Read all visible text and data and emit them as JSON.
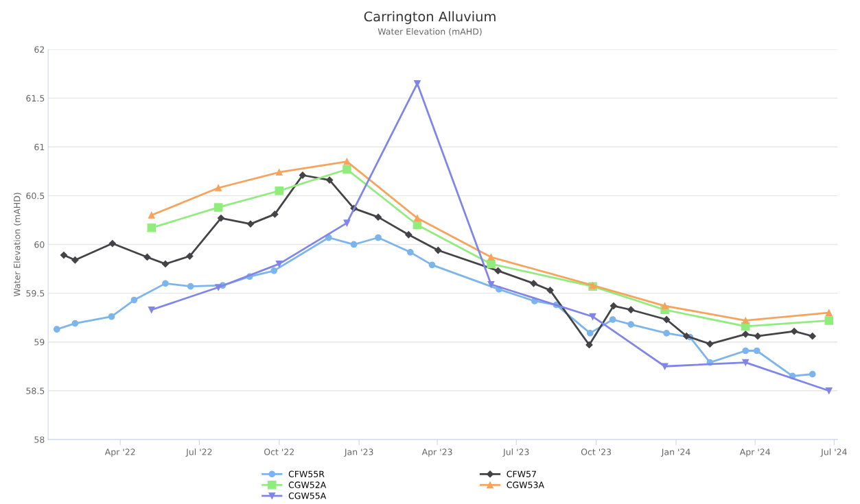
{
  "chart_data": {
    "type": "line",
    "title": "Carrington Alluvium",
    "subtitle": "Water Elevation (mAHD)",
    "ylabel": "Water Elevation (mAHD)",
    "xlim": [
      "2022-01-08",
      "2024-07-05"
    ],
    "xticks": [
      {
        "value": "2022-04-01",
        "label": "Apr '22"
      },
      {
        "value": "2022-07-01",
        "label": "Jul '22"
      },
      {
        "value": "2022-10-01",
        "label": "Oct '22"
      },
      {
        "value": "2023-01-01",
        "label": "Jan '23"
      },
      {
        "value": "2023-04-01",
        "label": "Apr '23"
      },
      {
        "value": "2023-07-01",
        "label": "Jul '23"
      },
      {
        "value": "2023-10-01",
        "label": "Oct '23"
      },
      {
        "value": "2024-01-01",
        "label": "Jan '24"
      },
      {
        "value": "2024-04-01",
        "label": "Apr '24"
      },
      {
        "value": "2024-07-01",
        "label": "Jul '24"
      }
    ],
    "ylim": [
      58,
      62
    ],
    "yticks": [
      58,
      58.5,
      59,
      59.5,
      60,
      60.5,
      61,
      61.5,
      62
    ],
    "grid": "y",
    "legend": "bottom",
    "line_style": "solid",
    "series": [
      {
        "name": "CFW55R",
        "color": "#7cb5ec",
        "marker": "circle",
        "x": [
          "2022-01-18",
          "2022-02-08",
          "2022-03-22",
          "2022-04-17",
          "2022-05-23",
          "2022-06-21",
          "2022-07-28",
          "2022-08-28",
          "2022-09-25",
          "2022-11-27",
          "2022-12-26",
          "2023-01-23",
          "2023-03-01",
          "2023-03-26",
          "2023-06-11",
          "2023-07-22",
          "2023-08-16",
          "2023-09-24",
          "2023-10-20",
          "2023-11-10",
          "2023-12-21",
          "2024-01-17",
          "2024-02-09",
          "2024-03-21",
          "2024-04-03",
          "2024-05-14",
          "2024-06-06"
        ],
        "values": [
          59.13,
          59.19,
          59.26,
          59.43,
          59.6,
          59.57,
          59.58,
          59.67,
          59.73,
          60.07,
          60.0,
          60.07,
          59.92,
          59.79,
          59.54,
          59.42,
          59.38,
          59.09,
          59.23,
          59.18,
          59.09,
          59.05,
          58.79,
          58.91,
          58.91,
          58.65,
          58.67
        ]
      },
      {
        "name": "CFW57",
        "color": "#434348",
        "marker": "diamond",
        "x": [
          "2022-01-26",
          "2022-02-08",
          "2022-03-23",
          "2022-05-02",
          "2022-05-23",
          "2022-06-20",
          "2022-07-26",
          "2022-08-29",
          "2022-09-26",
          "2022-10-28",
          "2022-11-28",
          "2022-12-26",
          "2023-01-23",
          "2023-02-27",
          "2023-04-02",
          "2023-06-10",
          "2023-07-21",
          "2023-08-09",
          "2023-09-23",
          "2023-10-21",
          "2023-11-10",
          "2023-12-21",
          "2024-01-13",
          "2024-02-09",
          "2024-03-21",
          "2024-04-04",
          "2024-05-16",
          "2024-06-06"
        ],
        "values": [
          59.89,
          59.84,
          60.01,
          59.87,
          59.8,
          59.88,
          60.27,
          60.21,
          60.31,
          60.71,
          60.66,
          60.37,
          60.28,
          60.1,
          59.94,
          59.73,
          59.6,
          59.53,
          58.97,
          59.37,
          59.33,
          59.23,
          59.06,
          58.98,
          59.08,
          59.06,
          59.11,
          59.06
        ]
      },
      {
        "name": "CGW52A",
        "color": "#90ed7d",
        "marker": "square",
        "x": [
          "2022-05-07",
          "2022-07-23",
          "2022-10-01",
          "2022-12-18",
          "2023-03-09",
          "2023-06-02",
          "2023-09-27",
          "2023-12-19",
          "2024-03-21",
          "2024-06-25"
        ],
        "values": [
          60.17,
          60.38,
          60.55,
          60.77,
          60.2,
          59.8,
          59.57,
          59.33,
          59.16,
          59.22
        ]
      },
      {
        "name": "CGW53A",
        "color": "#f7a35c",
        "marker": "triangle",
        "x": [
          "2022-05-07",
          "2022-07-23",
          "2022-10-01",
          "2022-12-18",
          "2023-03-09",
          "2023-06-02",
          "2023-09-27",
          "2023-12-19",
          "2024-03-21",
          "2024-06-25"
        ],
        "values": [
          60.3,
          60.58,
          60.74,
          60.85,
          60.27,
          59.87,
          59.58,
          59.37,
          59.22,
          59.3
        ]
      },
      {
        "name": "CGW55A",
        "color": "#8085e9",
        "marker": "triangle-down",
        "x": [
          "2022-05-07",
          "2022-07-23",
          "2022-10-01",
          "2022-12-18",
          "2023-03-09",
          "2023-06-02",
          "2023-09-27",
          "2023-12-19",
          "2024-03-21",
          "2024-06-25"
        ],
        "values": [
          59.33,
          59.56,
          59.8,
          60.22,
          61.65,
          59.59,
          59.26,
          58.75,
          58.79,
          58.5
        ]
      }
    ]
  }
}
